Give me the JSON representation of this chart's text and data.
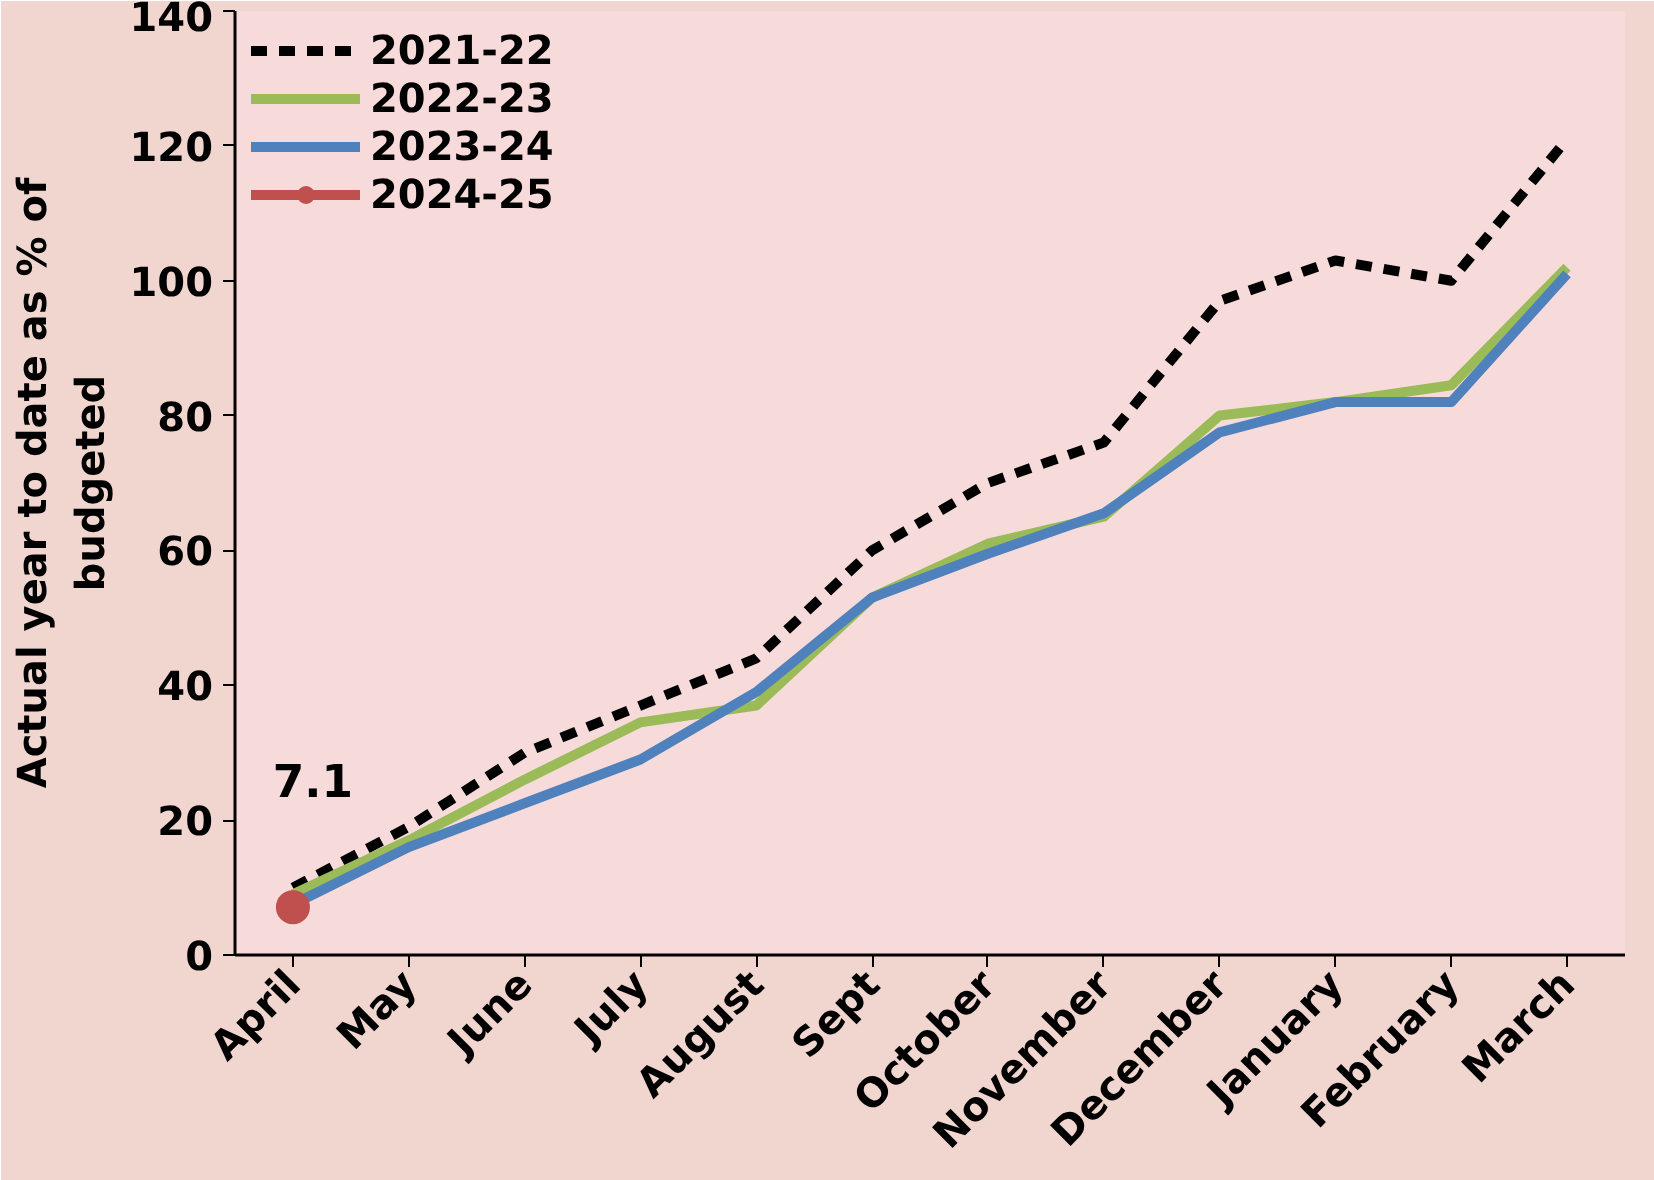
{
  "chart_data": {
    "type": "line",
    "ylabel": "Actual year to date as % of budgeted",
    "categories": [
      "April",
      "May",
      "June",
      "July",
      "August",
      "Sept",
      "October",
      "November",
      "December",
      "January",
      "February",
      "March"
    ],
    "series": [
      {
        "name": "2021-22",
        "color": "#000000",
        "line_style": "dashed",
        "values": [
          10,
          19,
          30,
          37,
          44,
          60,
          70,
          76,
          97,
          103,
          100,
          121
        ]
      },
      {
        "name": "2022-23",
        "color": "#9bbb59",
        "line_style": "solid",
        "values": [
          9,
          17,
          26,
          34.5,
          37,
          53,
          61,
          65,
          80,
          82,
          84.5,
          102
        ]
      },
      {
        "name": "2023-24",
        "color": "#4f81bd",
        "line_style": "solid",
        "values": [
          7.5,
          16,
          22.5,
          29,
          39,
          53,
          59.5,
          65.5,
          77.5,
          82,
          82,
          101
        ]
      },
      {
        "name": "2024-25",
        "color": "#c0504d",
        "line_style": "solid",
        "marker": "circle",
        "values": [
          7.1,
          null,
          null,
          null,
          null,
          null,
          null,
          null,
          null,
          null,
          null,
          null
        ],
        "value_labels": [
          "7.1",
          null,
          null,
          null,
          null,
          null,
          null,
          null,
          null,
          null,
          null,
          null
        ]
      }
    ],
    "ylim": [
      0,
      140
    ],
    "yticks": [
      0,
      20,
      40,
      60,
      80,
      100,
      120,
      140
    ],
    "grid": false,
    "legend": "top left"
  }
}
